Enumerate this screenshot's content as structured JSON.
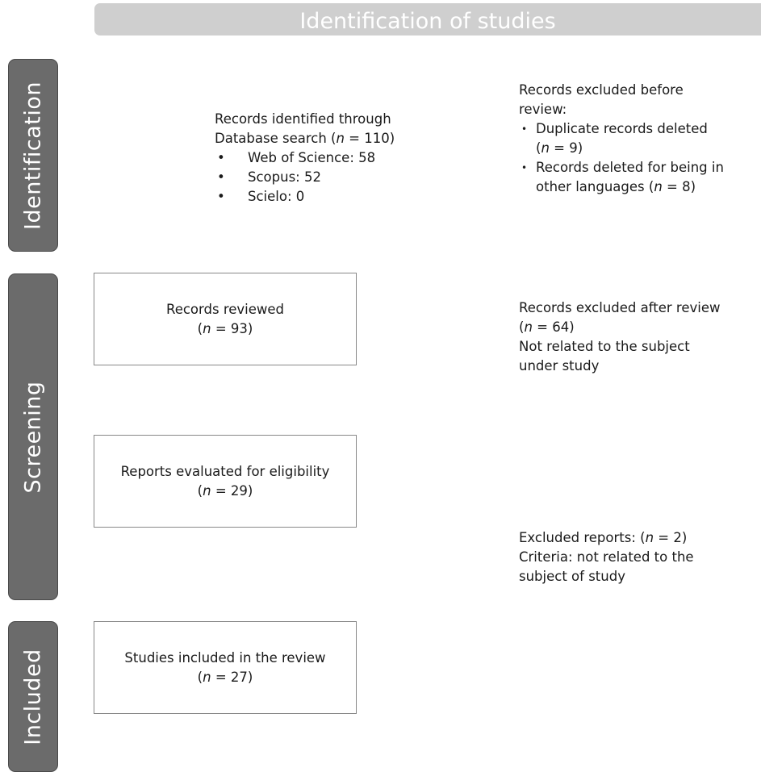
{
  "header": {
    "title": "Identification of studies"
  },
  "phases": {
    "identification": "Identification",
    "screening": "Screening",
    "included": "Included"
  },
  "identified": {
    "line1": "Records identified through",
    "line2_pre": "Database search (",
    "n": "n",
    "line2_post": " = 110)",
    "items": [
      "Web of Science: 58",
      "Scopus: 52",
      "Scielo: 0"
    ]
  },
  "excluded_before": {
    "line1": "Records excluded  before",
    "line2": "review:",
    "item1_line1": "Duplicate records deleted",
    "item1_pre": "(",
    "item1_post": " = 9)",
    "item2_line1": "Records deleted for being in",
    "item2_pre": "other languages (",
    "item2_post": " = 8)"
  },
  "reviewed": {
    "label": "Records reviewed",
    "pre": "(",
    "post": " = 93)"
  },
  "excluded_after": {
    "line1": "Records excluded after review",
    "pre": "(",
    "post": " = 64)",
    "line3": "Not related to the subject",
    "line4": "under study"
  },
  "eligibility": {
    "label": "Reports evaluated for eligibility",
    "pre": "(",
    "post": " = 29)"
  },
  "excluded_reports": {
    "pre": "Excluded reports: (",
    "post": " = 2)",
    "line2": "Criteria: not related to the",
    "line3": "subject of study"
  },
  "included_box": {
    "label": "Studies included in the review",
    "pre": "(",
    "post": " = 27)"
  },
  "n_symbol": "n"
}
